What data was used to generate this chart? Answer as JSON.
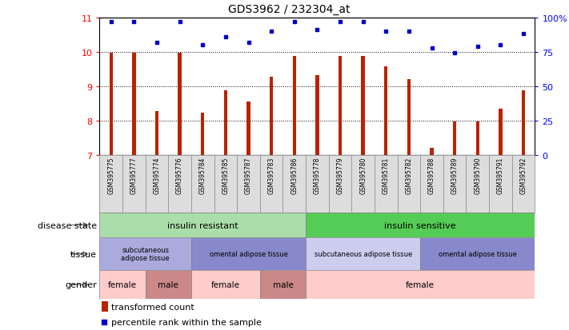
{
  "title": "GDS3962 / 232304_at",
  "samples": [
    "GSM395775",
    "GSM395777",
    "GSM395774",
    "GSM395776",
    "GSM395784",
    "GSM395785",
    "GSM395787",
    "GSM395783",
    "GSM395786",
    "GSM395778",
    "GSM395779",
    "GSM395780",
    "GSM395781",
    "GSM395782",
    "GSM395788",
    "GSM395789",
    "GSM395790",
    "GSM395791",
    "GSM395792"
  ],
  "transformed_count": [
    9.97,
    9.97,
    8.27,
    9.97,
    8.22,
    8.87,
    8.55,
    9.28,
    9.87,
    9.32,
    9.87,
    9.87,
    9.58,
    9.2,
    7.2,
    7.97,
    7.97,
    8.35,
    8.87
  ],
  "percentile_rank": [
    97,
    97,
    82,
    97,
    80,
    86,
    82,
    90,
    97,
    91,
    97,
    97,
    90,
    90,
    78,
    74,
    79,
    80,
    88
  ],
  "ylim_left": [
    7,
    11
  ],
  "ylim_right": [
    0,
    100
  ],
  "yticks_left": [
    7,
    8,
    9,
    10,
    11
  ],
  "yticks_right": [
    0,
    25,
    50,
    75,
    100
  ],
  "bar_color": "#BB2200",
  "dot_color": "#0000CC",
  "disease_state_regions": [
    {
      "label": "insulin resistant",
      "start": 0,
      "end": 9,
      "color": "#AADDAA"
    },
    {
      "label": "insulin sensitive",
      "start": 9,
      "end": 19,
      "color": "#55CC55"
    }
  ],
  "tissue_regions": [
    {
      "label": "subcutaneous\nadipose tissue",
      "start": 0,
      "end": 4,
      "color": "#AAAADD"
    },
    {
      "label": "omental adipose tissue",
      "start": 4,
      "end": 9,
      "color": "#8888CC"
    },
    {
      "label": "subcutaneous adipose tissue",
      "start": 9,
      "end": 14,
      "color": "#CCCCEE"
    },
    {
      "label": "omental adipose tissue",
      "start": 14,
      "end": 19,
      "color": "#8888CC"
    }
  ],
  "gender_regions": [
    {
      "label": "female",
      "start": 0,
      "end": 2,
      "color": "#FFCCCC"
    },
    {
      "label": "male",
      "start": 2,
      "end": 4,
      "color": "#CC8888"
    },
    {
      "label": "female",
      "start": 4,
      "end": 7,
      "color": "#FFCCCC"
    },
    {
      "label": "male",
      "start": 7,
      "end": 9,
      "color": "#CC8888"
    },
    {
      "label": "female",
      "start": 9,
      "end": 19,
      "color": "#FFCCCC"
    }
  ],
  "legend_bar_color": "#BB2200",
  "legend_dot_color": "#0000CC",
  "legend_bar_label": "transformed count",
  "legend_dot_label": "percentile rank within the sample",
  "left_labels": [
    "disease state",
    "tissue",
    "gender"
  ],
  "separator_after": 8
}
